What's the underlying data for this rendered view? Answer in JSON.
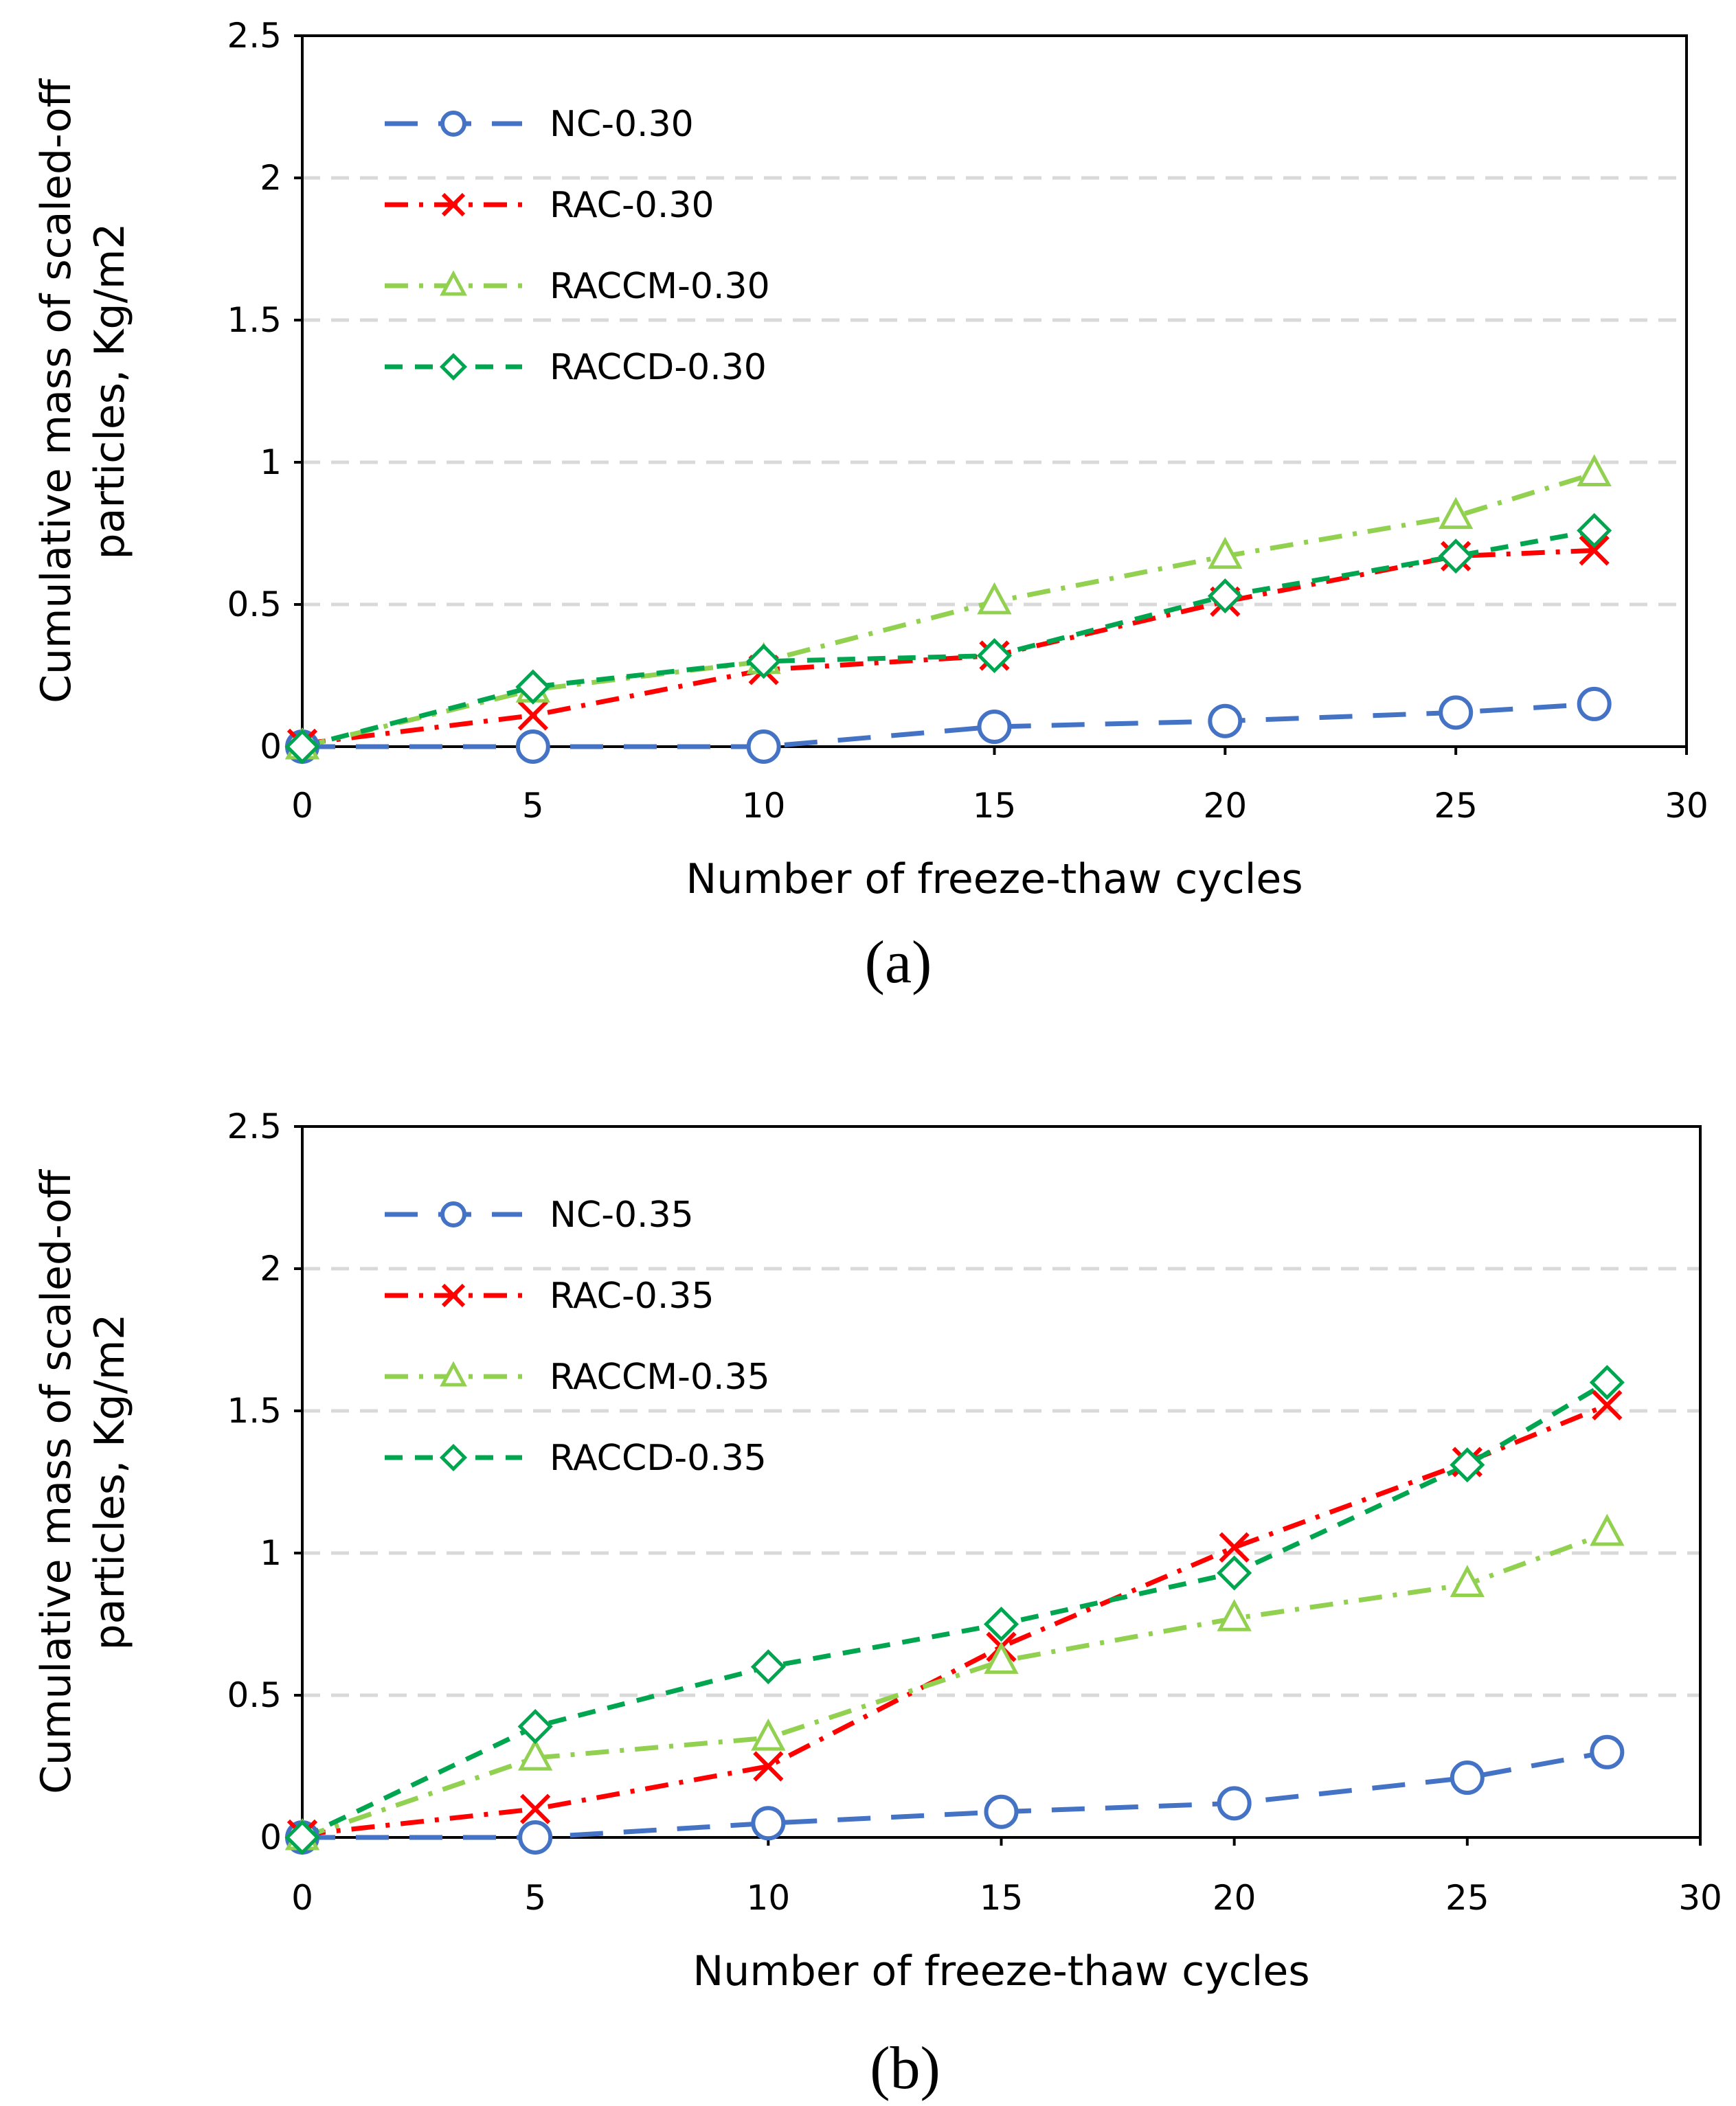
{
  "colors": {
    "NC": "#4472C4",
    "RAC": "#FF0000",
    "RACCM": "#92D050",
    "RACCD": "#00A550",
    "grid": "#d9d9d9",
    "axis": "#000000"
  },
  "chart_data": [
    {
      "type": "line",
      "panel_label": "(a)",
      "xlabel": "Number of freeze-thaw cycles",
      "ylabel_line1": "Cumulative mass of scaled-off",
      "ylabel_line2": "particles, Kg/m2",
      "xlim": [
        0,
        30
      ],
      "ylim": [
        0,
        2.5
      ],
      "x_ticks": [
        "0",
        "5",
        "10",
        "15",
        "20",
        "25",
        "30"
      ],
      "y_ticks": [
        "0",
        "0.5",
        "1",
        "1.5",
        "2",
        "2.5"
      ],
      "grid": "horizontal dashed",
      "legend_position": "top-left",
      "x": [
        0,
        5,
        10,
        15,
        20,
        25,
        28
      ],
      "series": [
        {
          "key": "NC",
          "name": "NC-0.30",
          "marker": "circle",
          "dash": "long-dash",
          "values": [
            0,
            0,
            0,
            0.07,
            0.09,
            0.12,
            0.15
          ]
        },
        {
          "key": "RAC",
          "name": "RAC-0.30",
          "marker": "x",
          "dash": "dash-dot",
          "values": [
            0.01,
            0.11,
            0.27,
            0.32,
            0.51,
            0.67,
            0.69
          ]
        },
        {
          "key": "RACCM",
          "name": "RACCM-0.30",
          "marker": "triangle",
          "dash": "dash-dot",
          "values": [
            0,
            0.2,
            0.3,
            0.51,
            0.67,
            0.81,
            0.96
          ]
        },
        {
          "key": "RACCD",
          "name": "RACCD-0.30",
          "marker": "diamond",
          "dash": "dash",
          "values": [
            0,
            0.21,
            0.3,
            0.32,
            0.53,
            0.67,
            0.76
          ]
        }
      ]
    },
    {
      "type": "line",
      "panel_label": "(b)",
      "xlabel": "Number of freeze-thaw cycles",
      "ylabel_line1": "Cumulative mass of scaled-off",
      "ylabel_line2": "particles, Kg/m2",
      "xlim": [
        0,
        30
      ],
      "ylim": [
        0,
        2.5
      ],
      "x_ticks": [
        "0",
        "5",
        "10",
        "15",
        "20",
        "25",
        "30"
      ],
      "y_ticks": [
        "0",
        "0.5",
        "1",
        "1.5",
        "2",
        "2.5"
      ],
      "grid": "horizontal dashed",
      "legend_position": "top-left",
      "x": [
        0,
        5,
        10,
        15,
        20,
        25,
        28
      ],
      "series": [
        {
          "key": "NC",
          "name": "NC-0.35",
          "marker": "circle",
          "dash": "long-dash",
          "values": [
            0,
            0,
            0.05,
            0.09,
            0.12,
            0.21,
            0.3
          ]
        },
        {
          "key": "RAC",
          "name": "RAC-0.35",
          "marker": "x",
          "dash": "dash-dot",
          "values": [
            0.01,
            0.1,
            0.25,
            0.67,
            1.02,
            1.32,
            1.52
          ]
        },
        {
          "key": "RACCM",
          "name": "RACCM-0.35",
          "marker": "triangle",
          "dash": "dash-dot",
          "values": [
            0,
            0.28,
            0.35,
            0.62,
            0.77,
            0.89,
            1.07
          ]
        },
        {
          "key": "RACCD",
          "name": "RACCD-0.35",
          "marker": "diamond",
          "dash": "dash",
          "values": [
            0,
            0.39,
            0.6,
            0.75,
            0.93,
            1.31,
            1.6
          ]
        }
      ]
    }
  ]
}
